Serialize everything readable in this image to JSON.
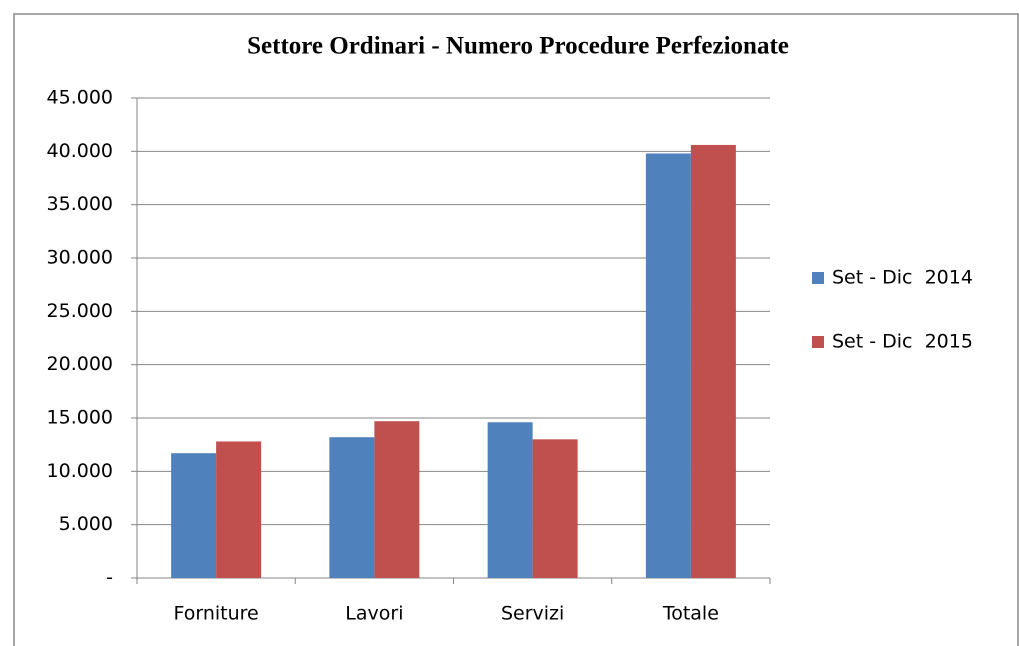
{
  "chart_data": {
    "type": "bar",
    "title": "Settore Ordinari - Numero Procedure Perfezionate",
    "categories": [
      "Forniture",
      "Lavori",
      "Servizi",
      "Totale"
    ],
    "series": [
      {
        "name": "Set - Dic  2014",
        "color": "#4f81bd",
        "values": [
          11700,
          13200,
          14600,
          39800
        ]
      },
      {
        "name": "Set - Dic  2015",
        "color": "#c0504d",
        "values": [
          12800,
          14700,
          13000,
          40600
        ]
      }
    ],
    "ylim": [
      0,
      45000
    ],
    "yticks": [
      {
        "value": 0,
        "label": "-"
      },
      {
        "value": 5000,
        "label": "5.000"
      },
      {
        "value": 10000,
        "label": "10.000"
      },
      {
        "value": 15000,
        "label": "15.000"
      },
      {
        "value": 20000,
        "label": "20.000"
      },
      {
        "value": 25000,
        "label": "25.000"
      },
      {
        "value": 30000,
        "label": "30.000"
      },
      {
        "value": 35000,
        "label": "35.000"
      },
      {
        "value": 40000,
        "label": "40.000"
      },
      {
        "value": 45000,
        "label": "45.000"
      }
    ],
    "grid": true,
    "legend": "right"
  }
}
